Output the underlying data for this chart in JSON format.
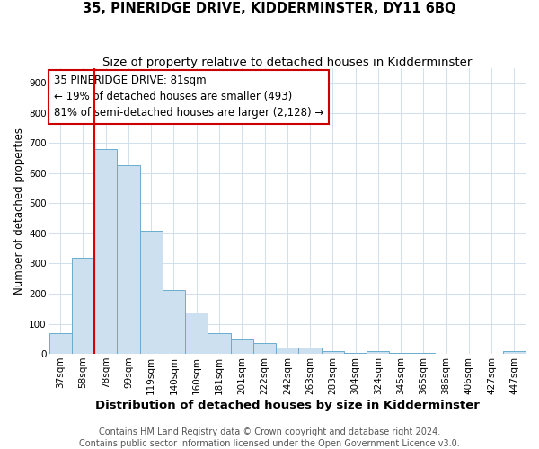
{
  "title": "35, PINERIDGE DRIVE, KIDDERMINSTER, DY11 6BQ",
  "subtitle": "Size of property relative to detached houses in Kidderminster",
  "xlabel": "Distribution of detached houses by size in Kidderminster",
  "ylabel": "Number of detached properties",
  "footer_line1": "Contains HM Land Registry data © Crown copyright and database right 2024.",
  "footer_line2": "Contains public sector information licensed under the Open Government Licence v3.0.",
  "categories": [
    "37sqm",
    "58sqm",
    "78sqm",
    "99sqm",
    "119sqm",
    "140sqm",
    "160sqm",
    "181sqm",
    "201sqm",
    "222sqm",
    "242sqm",
    "263sqm",
    "283sqm",
    "304sqm",
    "324sqm",
    "345sqm",
    "365sqm",
    "386sqm",
    "406sqm",
    "427sqm",
    "447sqm"
  ],
  "values": [
    70,
    320,
    680,
    625,
    410,
    212,
    138,
    68,
    47,
    35,
    22,
    22,
    10,
    3,
    10,
    4,
    2,
    1,
    1,
    1,
    8
  ],
  "bar_color": "#cde0f0",
  "bar_edge_color": "#6aacce",
  "property_line_x": 2.0,
  "property_line_color": "#dd0000",
  "annotation_line1": "35 PINERIDGE DRIVE: 81sqm",
  "annotation_line2": "← 19% of detached houses are smaller (493)",
  "annotation_line3": "81% of semi-detached houses are larger (2,128) →",
  "annotation_box_color": "#ffffff",
  "annotation_box_edge_color": "#cc0000",
  "ylim": [
    0,
    950
  ],
  "yticks": [
    0,
    100,
    200,
    300,
    400,
    500,
    600,
    700,
    800,
    900
  ],
  "background_color": "#ffffff",
  "plot_background_color": "#ffffff",
  "grid_color": "#d0e0ec",
  "title_fontsize": 10.5,
  "subtitle_fontsize": 9.5,
  "xlabel_fontsize": 9.5,
  "ylabel_fontsize": 8.5,
  "tick_fontsize": 7.5,
  "annotation_fontsize": 8.5,
  "footer_fontsize": 7.0
}
